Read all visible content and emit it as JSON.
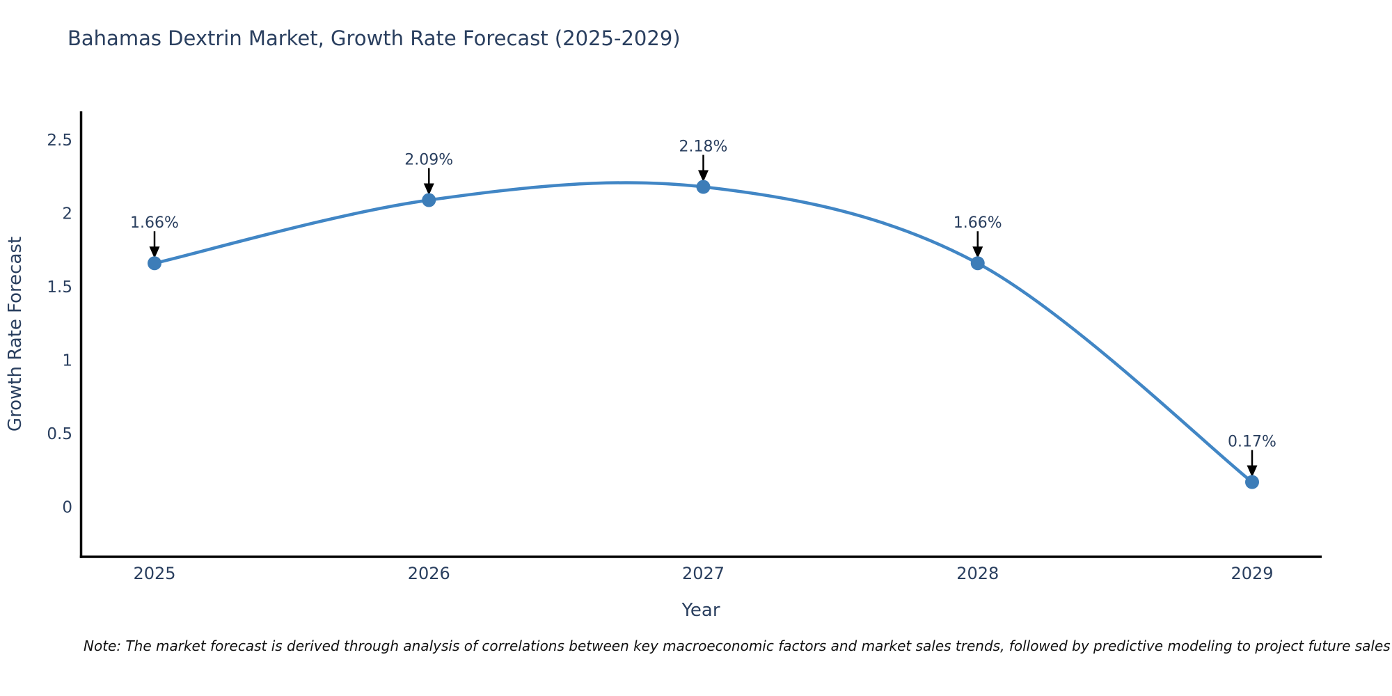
{
  "title": "Bahamas Dextrin Market, Growth Rate Forecast (2025-2029)",
  "note": "Note: The market forecast is derived through analysis of correlations between key macroeconomic factors and market sales trends, followed by predictive modeling to project future sales trends.",
  "chart_data": {
    "type": "line",
    "line_shape": "spline",
    "title": "Bahamas Dextrin Market, Growth Rate Forecast (2025-2029)",
    "xlabel": "Year",
    "ylabel": "Growth Rate Forecast",
    "x": [
      2025,
      2026,
      2027,
      2028,
      2029
    ],
    "x_tick_labels": [
      "2025",
      "2026",
      "2027",
      "2028",
      "2029"
    ],
    "series": [
      {
        "name": "Growth Rate Forecast",
        "values": [
          1.66,
          2.09,
          2.18,
          1.66,
          0.17
        ]
      }
    ],
    "point_labels": [
      "1.66%",
      "2.09%",
      "2.18%",
      "1.66%",
      "0.17%"
    ],
    "yticks": [
      0,
      0.5,
      1,
      1.5,
      2,
      2.5
    ],
    "ytick_labels": [
      "0",
      "0.5",
      "1",
      "1.5",
      "2",
      "2.5"
    ],
    "xlim": [
      2024.73,
      2029.25
    ],
    "ylim": [
      -0.34,
      2.68
    ],
    "grid": false,
    "legend": "none",
    "colors": {
      "line": "#4186c5",
      "marker": "#3d7db8",
      "axis": "#000000",
      "text": "#2a3f5f",
      "annotation_text": "#2a3f5f",
      "annotation_arrow": "#000000",
      "note_text": "#111111"
    }
  }
}
